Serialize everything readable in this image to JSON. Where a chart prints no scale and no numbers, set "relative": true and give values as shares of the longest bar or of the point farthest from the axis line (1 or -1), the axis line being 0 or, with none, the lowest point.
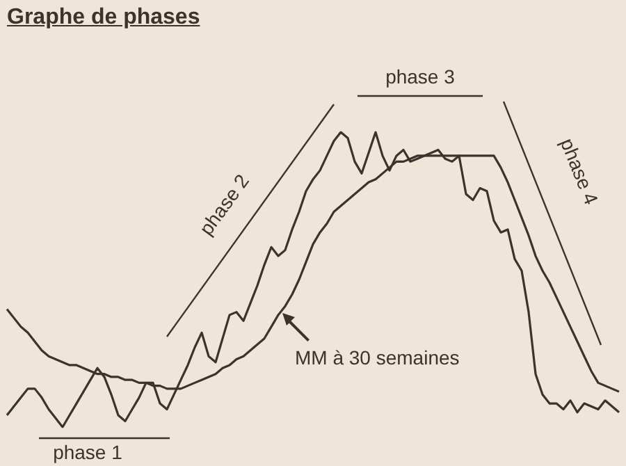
{
  "chart_data": {
    "type": "line",
    "title": "Graphe de phases",
    "relative": true,
    "marker": "none",
    "categories": [
      null,
      null,
      null,
      null,
      null,
      null,
      null,
      null,
      null,
      null,
      null,
      null,
      null,
      null,
      null,
      null,
      null,
      null,
      null,
      null,
      null,
      null,
      null,
      null,
      null,
      null,
      null,
      null,
      null,
      null,
      null,
      null,
      null,
      null,
      null,
      null,
      null,
      null,
      null,
      null,
      null,
      null,
      null,
      null,
      null,
      null,
      null,
      null,
      null,
      null,
      null,
      null,
      null,
      null,
      null,
      null,
      null,
      null,
      null,
      null,
      null,
      null,
      null,
      null,
      null,
      null,
      null,
      null,
      null,
      null,
      null,
      null,
      null,
      null,
      null,
      null,
      null,
      null,
      null,
      null,
      null,
      null,
      null,
      null,
      null,
      null,
      null,
      null,
      null
    ],
    "series": [
      {
        "color": "#3b332c",
        "values": [
          0.04,
          0.07,
          0.1,
          0.13,
          0.13,
          0.1,
          0.06,
          0.03,
          0,
          0.04,
          0.08,
          0.12,
          0.16,
          0.2,
          0.17,
          0.11,
          0.04,
          0.02,
          0.06,
          0.1,
          0.15,
          0.15,
          0.08,
          0.06,
          0.11,
          0.16,
          0.21,
          0.27,
          0.32,
          0.24,
          0.22,
          0.3,
          0.38,
          0.39,
          0.36,
          0.42,
          0.48,
          0.55,
          0.61,
          0.58,
          0.6,
          0.67,
          0.73,
          0.8,
          0.84,
          0.87,
          0.92,
          0.97,
          1,
          0.98,
          0.9,
          0.86,
          0.93,
          1,
          0.92,
          0.87,
          0.92,
          0.94,
          0.9,
          0.91,
          0.92,
          0.93,
          0.94,
          0.91,
          0.9,
          0.92,
          0.79,
          0.77,
          0.81,
          0.8,
          0.7,
          0.66,
          0.67,
          0.57,
          0.53,
          0.39,
          0.18,
          0.11,
          0.08,
          0.08,
          0.06,
          0.09,
          0.05,
          0.08,
          0.07,
          0.06,
          0.09,
          0.07,
          0.05
        ]
      },
      {
        "name": "MM à 30 semaines",
        "color": "#3b332c",
        "values": [
          0.4,
          0.37,
          0.34,
          0.32,
          0.29,
          0.26,
          0.24,
          0.23,
          0.22,
          0.21,
          0.21,
          0.2,
          0.19,
          0.18,
          0.18,
          0.17,
          0.17,
          0.16,
          0.16,
          0.15,
          0.15,
          0.14,
          0.14,
          0.13,
          0.13,
          0.13,
          0.14,
          0.15,
          0.16,
          0.17,
          0.18,
          0.2,
          0.21,
          0.23,
          0.24,
          0.26,
          0.28,
          0.3,
          0.34,
          0.38,
          0.41,
          0.45,
          0.5,
          0.56,
          0.62,
          0.66,
          0.69,
          0.73,
          0.75,
          0.77,
          0.79,
          0.81,
          0.83,
          0.84,
          0.86,
          0.88,
          0.9,
          0.9,
          0.91,
          0.92,
          0.92,
          0.92,
          0.92,
          0.92,
          0.92,
          0.92,
          0.92,
          0.92,
          0.92,
          0.92,
          0.92,
          0.88,
          0.83,
          0.77,
          0.71,
          0.65,
          0.58,
          0.53,
          0.49,
          0.44,
          0.39,
          0.34,
          0.29,
          0.24,
          0.19,
          0.15,
          0.14,
          0.13,
          0.12
        ]
      }
    ],
    "annotations": [
      "phase 1",
      "phase 2",
      "phase 3",
      "phase 4"
    ]
  }
}
